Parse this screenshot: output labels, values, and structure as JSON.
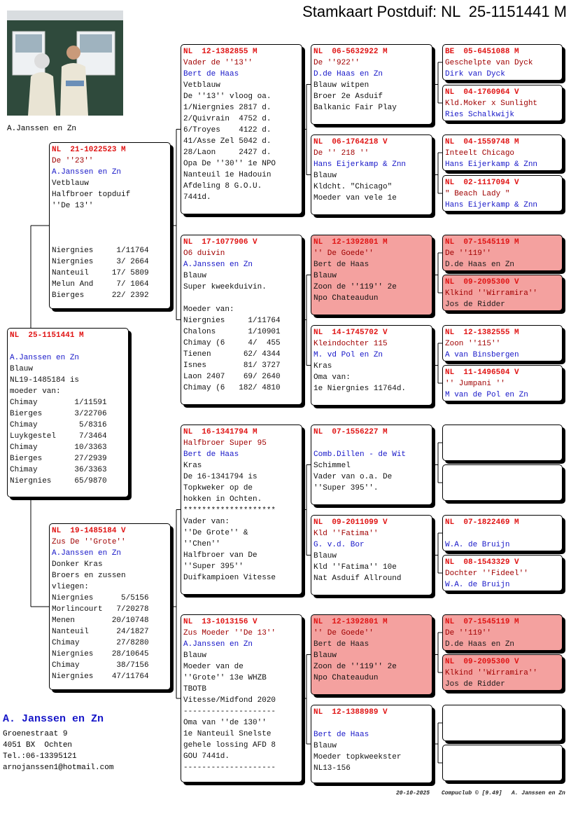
{
  "title": "Stamkaart Postduif: NL  25-1151441 M",
  "photo_caption": "A.Janssen en Zn",
  "subject": {
    "ring": "NL  25-1151441 M",
    "owner": "A.Janssen en Zn",
    "text": [
      "Blauw",
      "NL19-1485184 is",
      "moeder van:",
      "Chimay        1/11591",
      "Bierges       3/22706",
      "Chimay         5/8316",
      "Luykgestel     7/3464",
      "Chimay        10/3363",
      "Bierges       27/2939",
      "Chimay        36/3363",
      "Niergnies     65/9870"
    ]
  },
  "parents": [
    {
      "ring": "NL  21-1022523 M",
      "name": "De ''23''",
      "owner": "A.Janssen en Zn",
      "text": [
        "Vetblauw",
        "Halfbroer topduif",
        "''De 13''",
        null,
        null,
        null,
        "Niergnies     1/11764",
        "Niergnies     3/ 2664",
        "Nanteuil     17/ 5809",
        "Melun And     7/ 1064",
        "Bierges      22/ 2392"
      ]
    },
    {
      "ring": "NL  19-1485184 V",
      "name": "Zus De ''Grote''",
      "owner": "A.Janssen en Zn",
      "text": [
        "Donker Kras",
        "Broers en zussen",
        "vliegen:",
        "Niergnies      5/5156",
        "Morlincourt   7/20278",
        "Menen        20/10748",
        "Nanteuil      24/1827",
        "Chimay        27/8280",
        "Niergnies    28/10645",
        "Chimay        38/7156",
        "Niergnies    47/11764"
      ]
    }
  ],
  "grandparents": [
    {
      "ring": "NL  12-1382855 M",
      "name": "Vader de ''13''",
      "owner": "Bert de Haas",
      "text": [
        "Vetblauw",
        "De ''13'' vloog oa.",
        "1/Niergnies 2817 d.",
        "2/Quivrain  4752 d.",
        "6/Troyes    4122 d.",
        "41/Asse Zel 5042 d.",
        "28/Laon     2427 d.",
        "Opa De ''30'' 1e NPO",
        "Nanteuil 1e Hadouin",
        "Afdeling 8 G.O.U.",
        "7441d."
      ]
    },
    {
      "ring": "NL  17-1077906 V",
      "name": "O6 duivin",
      "owner": "A.Janssen en Zn",
      "text": [
        "Blauw",
        "Super kweekduivin.",
        null,
        "Moeder van:",
        "Niergnies     1/11764",
        "Chalons       1/10901",
        "Chimay (6     4/  455",
        "Tienen       62/ 4344",
        "Isnes        81/ 3727",
        "Laon 2407    69/ 2640",
        "Chimay (6   182/ 4810"
      ]
    },
    {
      "ring": "NL  16-1341794 M",
      "name": "Halfbroer Super 95",
      "owner": "Bert de Haas",
      "text": [
        "Kras",
        "De 16-1341794 is",
        "Topkweker op de",
        "hokken in Ochten.",
        "********************",
        "Vader van:",
        "''De Grote'' &",
        "''Chen''",
        "Halfbroer van De",
        "''Super 395''",
        "Duifkampioen Vitesse"
      ]
    },
    {
      "ring": "NL  13-1013156 V",
      "name": "Zus Moeder ''De 13''",
      "owner": "A.Janssen en Zn",
      "text": [
        "Blauw",
        "Moeder van de",
        "''Grote'' 13e WHZB",
        "TBOTB",
        "Vitesse/Midfond 2020",
        "--------------------",
        "Oma van ''de 130''",
        "1e Nanteuil Snelste",
        "gehele lossing AFD 8",
        "GOU 7441d.",
        "--------------------"
      ]
    }
  ],
  "great_grandparents": [
    {
      "ring": "NL  06-5632922 M",
      "name": "De ''922''",
      "owner": "D.de Haas en Zn",
      "text": [
        "Blauw witpen",
        "Broer 2e Asduif",
        "Balkanic Fair Play"
      ]
    },
    {
      "ring": "NL  06-1764218 V",
      "name": "De '' 218 ''",
      "owner": "Hans Eijerkamp & Znn",
      "text": [
        "Blauw",
        "Kldcht. \"Chicago\"",
        "Moeder van vele 1e"
      ]
    },
    {
      "ring": "NL  12-1392801 M",
      "name": "'' De Goede''",
      "owner": "Bert de Haas",
      "text": [
        "Blauw",
        "Zoon de ''119'' 2e",
        "Npo Chateaudun"
      ],
      "color": "#f4a19f"
    },
    {
      "ring": "NL  14-1745702 V",
      "name": "Kleindochter 115",
      "owner": "M. vd Pol en Zn",
      "text": [
        "Kras",
        "Oma van:",
        "1e Niergnies 11764d."
      ]
    },
    {
      "ring": "NL  07-1556227 M",
      "owner": "Comb.Dillen - de Wit",
      "text": [
        "Schimmel",
        "Vader van o.a. De",
        "''Super 395''."
      ]
    },
    {
      "ring": "NL  09-2011099 V",
      "name": "Kld ''Fatima''",
      "owner": "G. v.d. Bor",
      "text": [
        "Blauw",
        "Kld ''Fatima'' 10e",
        "Nat Asduif Allround"
      ]
    },
    {
      "ring": "NL  12-1392801 M",
      "name": "'' De Goede''",
      "owner": "Bert de Haas",
      "text": [
        "Blauw",
        "Zoon de ''119'' 2e",
        "Npo Chateaudun"
      ],
      "color": "#f4a19f"
    },
    {
      "ring": "NL  12-1388989 V",
      "owner": "Bert de Haas",
      "text": [
        "Blauw",
        "Moeder topkweekster",
        "NL13-156"
      ]
    }
  ],
  "great_great_grandparents": [
    {
      "ring": "BE  05-6451088 M",
      "name": "Geschelpte van Dyck",
      "owner": "Dirk van Dyck"
    },
    {
      "ring": "NL  04-1760964 V",
      "name": "Kld.Moker x Sunlight",
      "owner": "Ries Schalkwijk"
    },
    {
      "ring": "NL  04-1559748 M",
      "name": "Inteelt Chicago",
      "owner": "Hans Eijerkamp & Znn"
    },
    {
      "ring": "NL  02-1117094 V",
      "name": "\" Beach Lady \"",
      "owner": "Hans Eijerkamp & Znn"
    },
    {
      "ring": "NL  07-1545119 M",
      "name": "De ''119''",
      "owner": "D.de Haas en Zn",
      "color": "#f4a19f"
    },
    {
      "ring": "NL  09-2095300 V",
      "name": "Klkind ''Wirramira''",
      "owner": "Jos de Ridder",
      "color": "#f4a19f"
    },
    {
      "ring": "NL  12-1382555 M",
      "name": "Zoon ''115''",
      "owner": "A van Binsbergen"
    },
    {
      "ring": "NL  11-1496504 V",
      "name": "'' Jumpani ''",
      "owner": "M van de Pol en Zn"
    },
    null,
    null,
    {
      "ring": "NL  07-1822469 M",
      "owner": "W.A. de Bruijn"
    },
    {
      "ring": "NL  08-1543329 V",
      "name": "Dochter ''Fideel''",
      "owner": "W.A. de Bruijn"
    },
    {
      "ring": "NL  07-1545119 M",
      "name": "De ''119''",
      "owner": "D.de Haas en Zn",
      "color": "#f4a19f"
    },
    {
      "ring": "NL  09-2095300 V",
      "name": "Klkind ''Wirramira''",
      "owner": "Jos de Ridder",
      "color": "#f4a19f"
    },
    null,
    null
  ],
  "footer": {
    "name": "A. Janssen en Zn",
    "address": [
      "Groenestraat 9",
      "4051 BX  Ochten",
      "Tel.:06-13395121",
      "arnojanssen1@hotmail.com"
    ]
  },
  "print_line": {
    "date": "20-10-2025",
    "software": "Compuclub © [9.49]",
    "owner": "A. Janssen en Zn"
  }
}
